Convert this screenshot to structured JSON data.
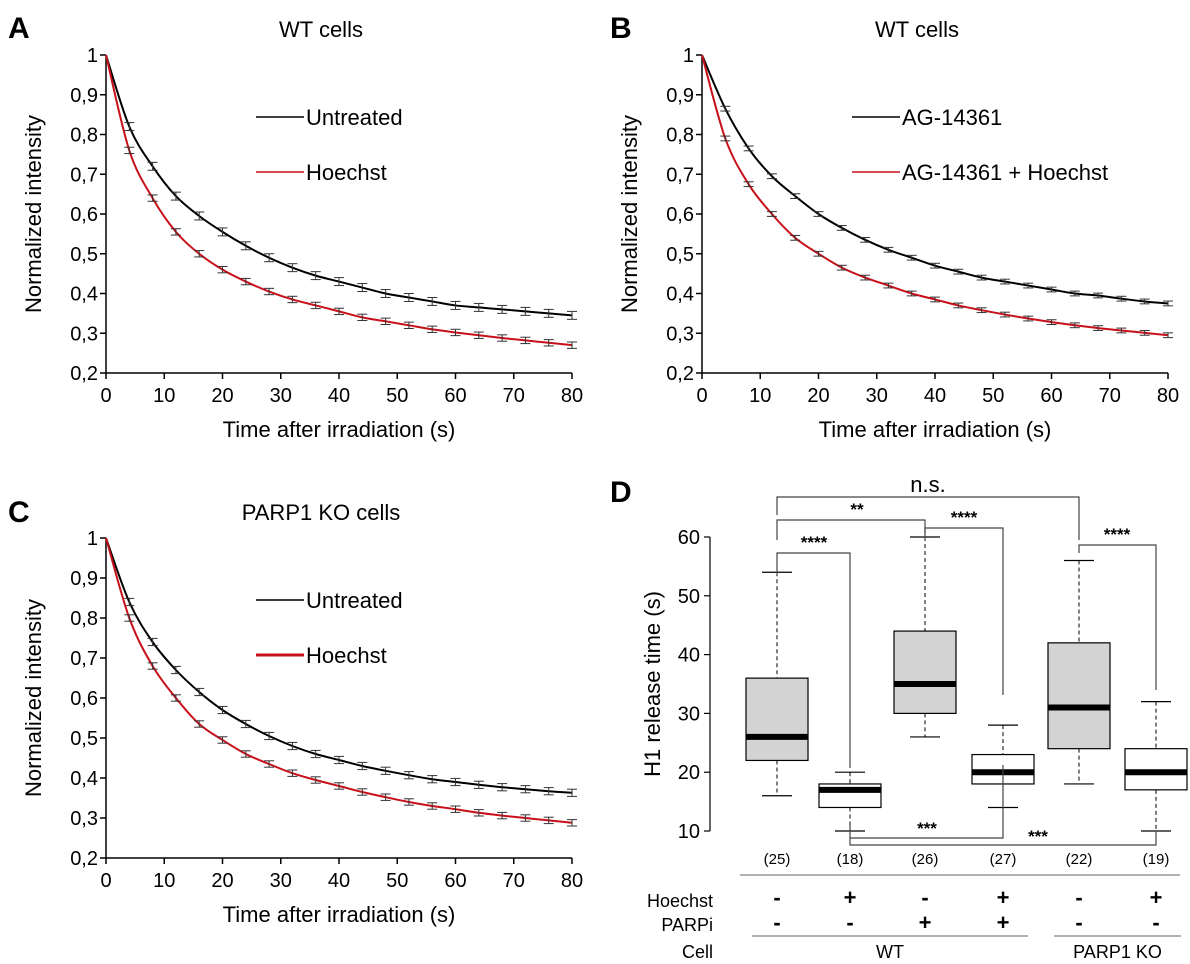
{
  "colors": {
    "black": "#000000",
    "red": "#c8101a",
    "box_gray": "#d3d3d3",
    "box_white": "#ffffff"
  },
  "chart_data": [
    {
      "panel": "A",
      "type": "line",
      "title": "WT cells",
      "xlabel": "Time after irradiation (s)",
      "ylabel": "Normalized intensity",
      "xlim": [
        0,
        80
      ],
      "ylim": [
        0.2,
        1
      ],
      "xticks": [
        "0",
        "10",
        "20",
        "30",
        "40",
        "50",
        "60",
        "70",
        "80"
      ],
      "yticks": [
        "1",
        "0,9",
        "0,8",
        "0,7",
        "0,6",
        "0,5",
        "0,4",
        "0,3",
        "0,2"
      ],
      "legend_position": "upper-right",
      "series": [
        {
          "name": "Untreated",
          "color": "#000000",
          "x": [
            0,
            4,
            8,
            12,
            16,
            20,
            24,
            28,
            32,
            36,
            40,
            44,
            48,
            52,
            56,
            60,
            64,
            68,
            72,
            76,
            80
          ],
          "y": [
            1.0,
            0.82,
            0.72,
            0.645,
            0.595,
            0.555,
            0.52,
            0.49,
            0.465,
            0.445,
            0.43,
            0.415,
            0.4,
            0.39,
            0.38,
            0.37,
            0.365,
            0.36,
            0.355,
            0.35,
            0.345
          ],
          "err": 0.01
        },
        {
          "name": "Hoechst",
          "color": "#c8101a",
          "x": [
            0,
            4,
            8,
            12,
            16,
            20,
            24,
            28,
            32,
            36,
            40,
            44,
            48,
            52,
            56,
            60,
            64,
            68,
            72,
            76,
            80
          ],
          "y": [
            1.0,
            0.76,
            0.64,
            0.555,
            0.5,
            0.46,
            0.43,
            0.405,
            0.385,
            0.37,
            0.355,
            0.34,
            0.33,
            0.32,
            0.31,
            0.302,
            0.295,
            0.288,
            0.282,
            0.276,
            0.27
          ],
          "err": 0.008
        }
      ]
    },
    {
      "panel": "B",
      "type": "line",
      "title": "WT cells",
      "xlabel": "Time after irradiation (s)",
      "ylabel": "Normalized intensity",
      "xlim": [
        0,
        80
      ],
      "ylim": [
        0.2,
        1
      ],
      "xticks": [
        "0",
        "10",
        "20",
        "30",
        "40",
        "50",
        "60",
        "70",
        "80"
      ],
      "yticks": [
        "1",
        "0,9",
        "0,8",
        "0,7",
        "0,6",
        "0,5",
        "0,4",
        "0,3",
        "0,2"
      ],
      "legend_position": "upper-right",
      "series": [
        {
          "name": "AG-14361",
          "color": "#000000",
          "x": [
            0,
            4,
            8,
            12,
            16,
            20,
            24,
            28,
            32,
            36,
            40,
            44,
            48,
            52,
            56,
            60,
            64,
            68,
            72,
            76,
            80
          ],
          "y": [
            1.0,
            0.865,
            0.765,
            0.695,
            0.645,
            0.6,
            0.565,
            0.535,
            0.51,
            0.49,
            0.47,
            0.455,
            0.44,
            0.43,
            0.42,
            0.41,
            0.4,
            0.395,
            0.387,
            0.38,
            0.375
          ],
          "err": 0.006
        },
        {
          "name": "AG-14361 + Hoechst",
          "color": "#c8101a",
          "x": [
            0,
            4,
            8,
            12,
            16,
            20,
            24,
            28,
            32,
            36,
            40,
            44,
            48,
            52,
            56,
            60,
            64,
            68,
            72,
            76,
            80
          ],
          "y": [
            1.0,
            0.79,
            0.675,
            0.6,
            0.54,
            0.5,
            0.465,
            0.44,
            0.42,
            0.4,
            0.385,
            0.37,
            0.358,
            0.347,
            0.337,
            0.328,
            0.32,
            0.313,
            0.307,
            0.301,
            0.295
          ],
          "err": 0.006
        }
      ]
    },
    {
      "panel": "C",
      "type": "line",
      "title": "PARP1 KO cells",
      "xlabel": "Time after irradiation (s)",
      "ylabel": "Normalized intensity",
      "xlim": [
        0,
        80
      ],
      "ylim": [
        0.2,
        1
      ],
      "xticks": [
        "0",
        "10",
        "20",
        "30",
        "40",
        "50",
        "60",
        "70",
        "80"
      ],
      "yticks": [
        "1",
        "0,9",
        "0,8",
        "0,7",
        "0,6",
        "0,5",
        "0,4",
        "0,3",
        "0,2"
      ],
      "legend_position": "upper-right",
      "series": [
        {
          "name": "Untreated",
          "color": "#000000",
          "x": [
            0,
            4,
            8,
            12,
            16,
            20,
            24,
            28,
            32,
            36,
            40,
            44,
            48,
            52,
            56,
            60,
            64,
            68,
            72,
            76,
            80
          ],
          "y": [
            1.0,
            0.84,
            0.74,
            0.67,
            0.615,
            0.57,
            0.535,
            0.505,
            0.48,
            0.46,
            0.445,
            0.43,
            0.418,
            0.407,
            0.397,
            0.39,
            0.383,
            0.377,
            0.372,
            0.367,
            0.363
          ],
          "err": 0.009
        },
        {
          "name": "Hoechst",
          "color": "#c8101a",
          "x": [
            0,
            4,
            8,
            12,
            16,
            20,
            24,
            28,
            32,
            36,
            40,
            44,
            48,
            52,
            56,
            60,
            64,
            68,
            72,
            76,
            80
          ],
          "y": [
            1.0,
            0.8,
            0.68,
            0.6,
            0.535,
            0.495,
            0.46,
            0.435,
            0.412,
            0.395,
            0.38,
            0.365,
            0.352,
            0.34,
            0.33,
            0.322,
            0.313,
            0.306,
            0.3,
            0.294,
            0.288
          ],
          "err": 0.008
        }
      ]
    },
    {
      "panel": "D",
      "type": "box",
      "ylabel": "H1 release time (s)",
      "ylim": [
        10,
        60
      ],
      "yticks": [
        "10",
        "20",
        "30",
        "40",
        "50",
        "60"
      ],
      "boxes": [
        {
          "n": "(25)",
          "hoechst": "-",
          "parpi": "-",
          "min": 16,
          "q1": 22,
          "median": 26,
          "q3": 36,
          "max": 54,
          "fill": "gray"
        },
        {
          "n": "(18)",
          "hoechst": "+",
          "parpi": "-",
          "min": 10,
          "q1": 14,
          "median": 17,
          "q3": 18,
          "max": 20,
          "fill": "white"
        },
        {
          "n": "(26)",
          "hoechst": "-",
          "parpi": "+",
          "min": 26,
          "q1": 30,
          "median": 35,
          "q3": 44,
          "max": 60,
          "fill": "gray"
        },
        {
          "n": "(27)",
          "hoechst": "+",
          "parpi": "+",
          "min": 14,
          "q1": 18,
          "median": 20,
          "q3": 23,
          "max": 28,
          "fill": "white"
        },
        {
          "n": "(22)",
          "hoechst": "-",
          "parpi": "-",
          "min": 18,
          "q1": 24,
          "median": 31,
          "q3": 42,
          "max": 56,
          "fill": "gray"
        },
        {
          "n": "(19)",
          "hoechst": "+",
          "parpi": "-",
          "min": 10,
          "q1": 17,
          "median": 20,
          "q3": 24,
          "max": 32,
          "fill": "white"
        }
      ],
      "significance": [
        {
          "label": "n.s.",
          "from": 1,
          "to": 5
        },
        {
          "label": "**",
          "from": 1,
          "to": 3
        },
        {
          "label": "****",
          "from": 1,
          "to": 2
        },
        {
          "label": "****",
          "from": 3,
          "to": 4
        },
        {
          "label": "****",
          "from": 5,
          "to": 6
        },
        {
          "label": "***",
          "from": 2,
          "to": 4
        },
        {
          "label": "***",
          "from": 2,
          "to": 6
        }
      ],
      "row_labels": {
        "hoechst": "Hoechst",
        "parpi": "PARPi",
        "cell": "Cell"
      },
      "groups": [
        {
          "label": "WT",
          "from": 1,
          "to": 4
        },
        {
          "label": "PARP1 KO",
          "from": 5,
          "to": 6
        }
      ]
    }
  ]
}
